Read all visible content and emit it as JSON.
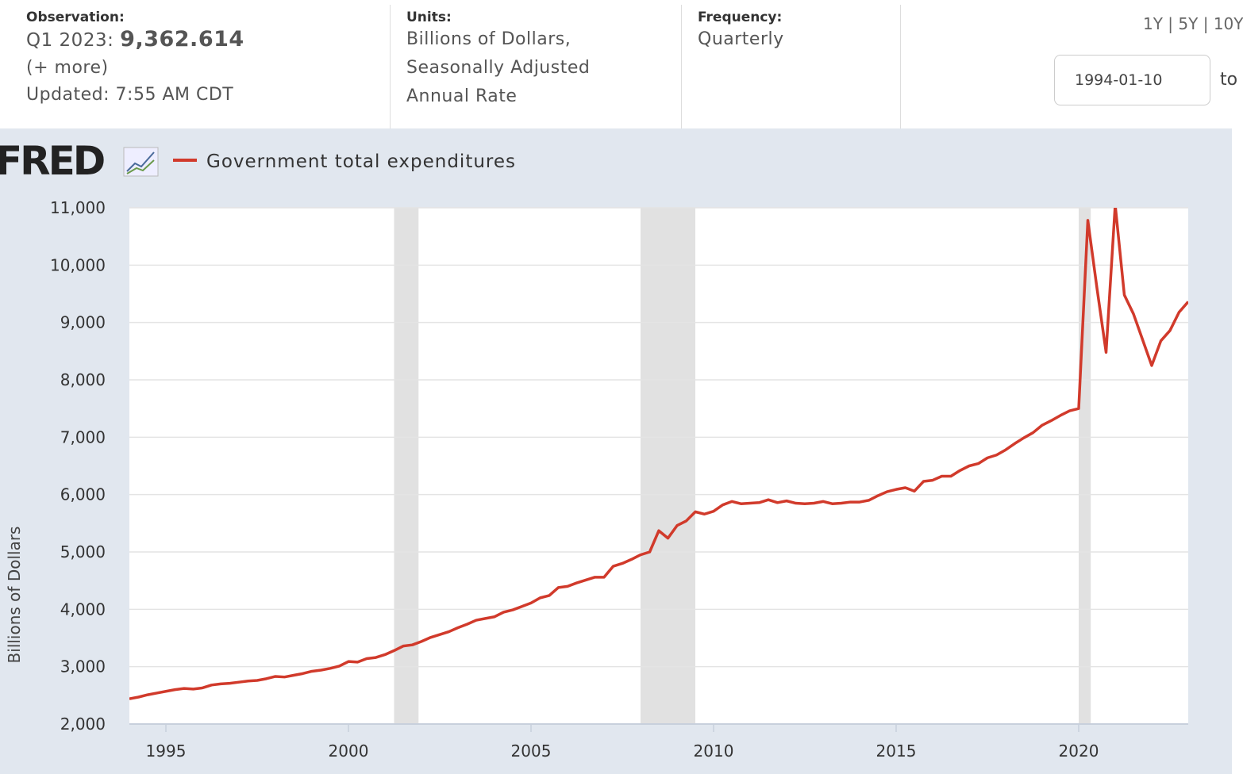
{
  "header": {
    "observation_label": "Observation:",
    "observation_period": "Q1 2023:",
    "observation_value": "9,362.614",
    "more": "(+ more)",
    "updated": "Updated: 7:55 AM CDT",
    "units_label": "Units:",
    "units": [
      "Billions of Dollars,",
      "Seasonally Adjusted",
      "Annual Rate"
    ],
    "frequency_label": "Frequency:",
    "frequency": "Quarterly",
    "ranges": [
      "1Y",
      "5Y",
      "10Y"
    ],
    "start_date": "1994-01-10",
    "to": "to"
  },
  "logo": "FRED",
  "chart_data": {
    "type": "line",
    "ylabel": "Billions of Dollars",
    "x": [
      1994,
      1994.25,
      1994.5,
      1994.75,
      1995,
      1995.25,
      1995.5,
      1995.75,
      1996,
      1996.25,
      1996.5,
      1996.75,
      1997,
      1997.25,
      1997.5,
      1997.75,
      1998,
      1998.25,
      1998.5,
      1998.75,
      1999,
      1999.25,
      1999.5,
      1999.75,
      2000,
      2000.25,
      2000.5,
      2000.75,
      2001,
      2001.25,
      2001.5,
      2001.75,
      2002,
      2002.25,
      2002.5,
      2002.75,
      2003,
      2003.25,
      2003.5,
      2003.75,
      2004,
      2004.25,
      2004.5,
      2004.75,
      2005,
      2005.25,
      2005.5,
      2005.75,
      2006,
      2006.25,
      2006.5,
      2006.75,
      2007,
      2007.25,
      2007.5,
      2007.75,
      2008,
      2008.25,
      2008.5,
      2008.75,
      2009,
      2009.25,
      2009.5,
      2009.75,
      2010,
      2010.25,
      2010.5,
      2010.75,
      2011,
      2011.25,
      2011.5,
      2011.75,
      2012,
      2012.25,
      2012.5,
      2012.75,
      2013,
      2013.25,
      2013.5,
      2013.75,
      2014,
      2014.25,
      2014.5,
      2014.75,
      2015,
      2015.25,
      2015.5,
      2015.75,
      2016,
      2016.25,
      2016.5,
      2016.75,
      2017,
      2017.25,
      2017.5,
      2017.75,
      2018,
      2018.25,
      2018.5,
      2018.75,
      2019,
      2019.25,
      2019.5,
      2019.75,
      2020,
      2020.25,
      2020.5,
      2020.75,
      2021,
      2021.25,
      2021.5,
      2021.75,
      2022,
      2022.25,
      2022.5,
      2022.75,
      2023
    ],
    "series": [
      {
        "name": "Government total expenditures",
        "color": "#d13a2b",
        "values": [
          2440,
          2470,
          2510,
          2540,
          2570,
          2600,
          2620,
          2610,
          2630,
          2680,
          2700,
          2710,
          2730,
          2750,
          2760,
          2790,
          2830,
          2820,
          2850,
          2880,
          2920,
          2940,
          2970,
          3010,
          3090,
          3080,
          3140,
          3160,
          3210,
          3280,
          3360,
          3380,
          3440,
          3510,
          3560,
          3610,
          3680,
          3740,
          3810,
          3840,
          3870,
          3950,
          3990,
          4050,
          4110,
          4200,
          4240,
          4380,
          4400,
          4460,
          4510,
          4560,
          4560,
          4750,
          4800,
          4870,
          4950,
          5000,
          5370,
          5240,
          5460,
          5540,
          5700,
          5660,
          5710,
          5820,
          5880,
          5840,
          5850,
          5860,
          5910,
          5860,
          5890,
          5850,
          5840,
          5850,
          5880,
          5840,
          5850,
          5870,
          5870,
          5900,
          5980,
          6050,
          6090,
          6120,
          6060,
          6230,
          6250,
          6320,
          6320,
          6420,
          6500,
          6540,
          6640,
          6690,
          6780,
          6890,
          6990,
          7080,
          7210,
          7290,
          7380,
          7460,
          7500,
          10780,
          9600,
          8480,
          11050,
          9480,
          9150,
          8700,
          8250,
          8680,
          8860,
          9180,
          9362.614
        ]
      }
    ],
    "recessions": [
      [
        2001.25,
        2001.92
      ],
      [
        2008,
        2009.5
      ],
      [
        2020,
        2020.33
      ]
    ],
    "recession_color": "#e1e1e1",
    "xlim": [
      1994,
      2023
    ],
    "ylim": [
      2000,
      11000
    ],
    "xticks": [
      1995,
      2000,
      2005,
      2010,
      2015,
      2020
    ],
    "yticks": [
      {
        "value": 2000,
        "label": "2,000"
      },
      {
        "value": 3000,
        "label": "3,000"
      },
      {
        "value": 4000,
        "label": "4,000"
      },
      {
        "value": 5000,
        "label": "5,000"
      },
      {
        "value": 6000,
        "label": "6,000"
      },
      {
        "value": 7000,
        "label": "7,000"
      },
      {
        "value": 8000,
        "label": "8,000"
      },
      {
        "value": 9000,
        "label": "9,000"
      },
      {
        "value": 10000,
        "label": "10,000"
      },
      {
        "value": 11000,
        "label": "11,000"
      }
    ],
    "grid": true
  }
}
